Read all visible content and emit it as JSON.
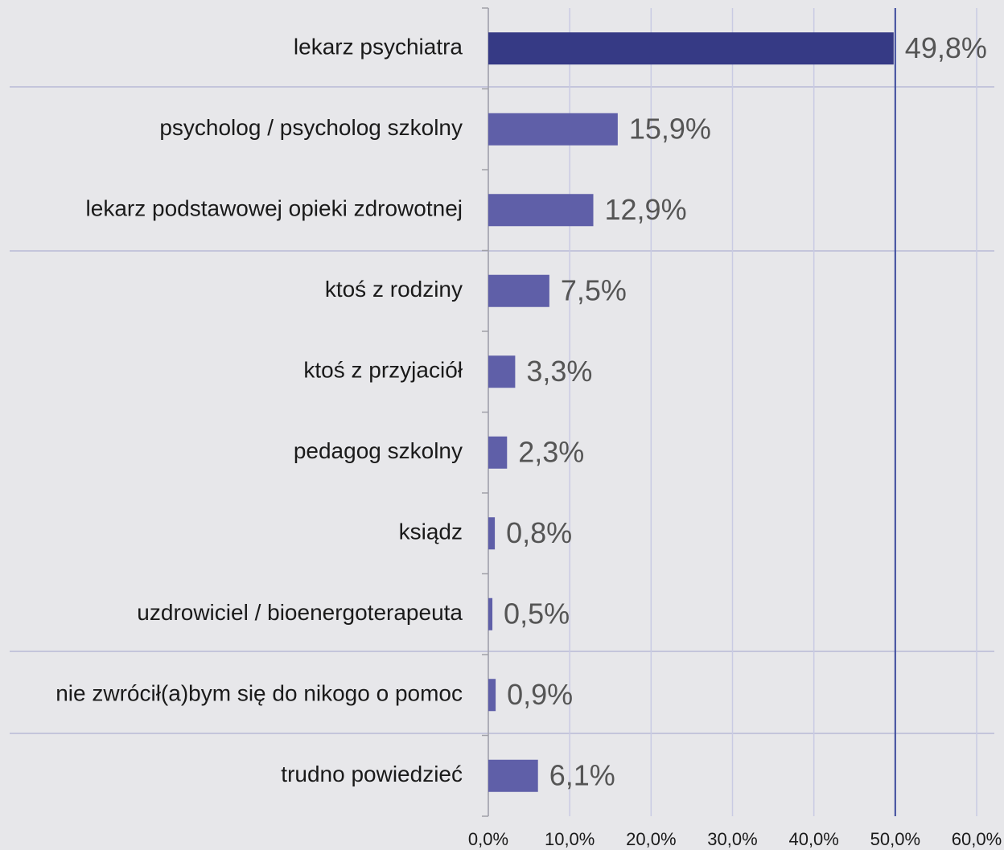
{
  "chart_data": {
    "type": "bar",
    "orientation": "horizontal",
    "categories": [
      "lekarz psychiatra",
      "psycholog / psycholog szkolny",
      "lekarz podstawowej opieki zdrowotnej",
      "ktoś z rodziny",
      "ktoś z przyjaciół",
      "pedagog szkolny",
      "ksiądz",
      "uzdrowiciel / bioenergoterapeuta",
      "nie zwrócił(a)bym się do nikogo o pomoc",
      "trudno powiedzieć"
    ],
    "values": [
      49.8,
      15.9,
      12.9,
      7.5,
      3.3,
      2.3,
      0.8,
      0.5,
      0.9,
      6.1
    ],
    "value_labels": [
      "49,8%",
      "15,9%",
      "12,9%",
      "7,5%",
      "3,3%",
      "2,3%",
      "0,8%",
      "0,5%",
      "0,9%",
      "6,1%"
    ],
    "colors": [
      "#363a85",
      "#5f5fa8",
      "#5f5fa8",
      "#5f5fa8",
      "#5f5fa8",
      "#5f5fa8",
      "#5f5fa8",
      "#5f5fa8",
      "#5f5fa8",
      "#5f5fa8"
    ],
    "xlim": [
      0,
      60
    ],
    "xticks": [
      {
        "value": 0,
        "label": "0,0%"
      },
      {
        "value": 10,
        "label": "10,0%"
      },
      {
        "value": 20,
        "label": "20,0%"
      },
      {
        "value": 30,
        "label": "30,0%"
      },
      {
        "value": 40,
        "label": "40,0%"
      },
      {
        "value": 50,
        "label": "50,0%"
      },
      {
        "value": 60,
        "label": "60,0%"
      }
    ],
    "grid": true,
    "reference_line": {
      "value": 50,
      "color": "#3c4a9c"
    }
  }
}
